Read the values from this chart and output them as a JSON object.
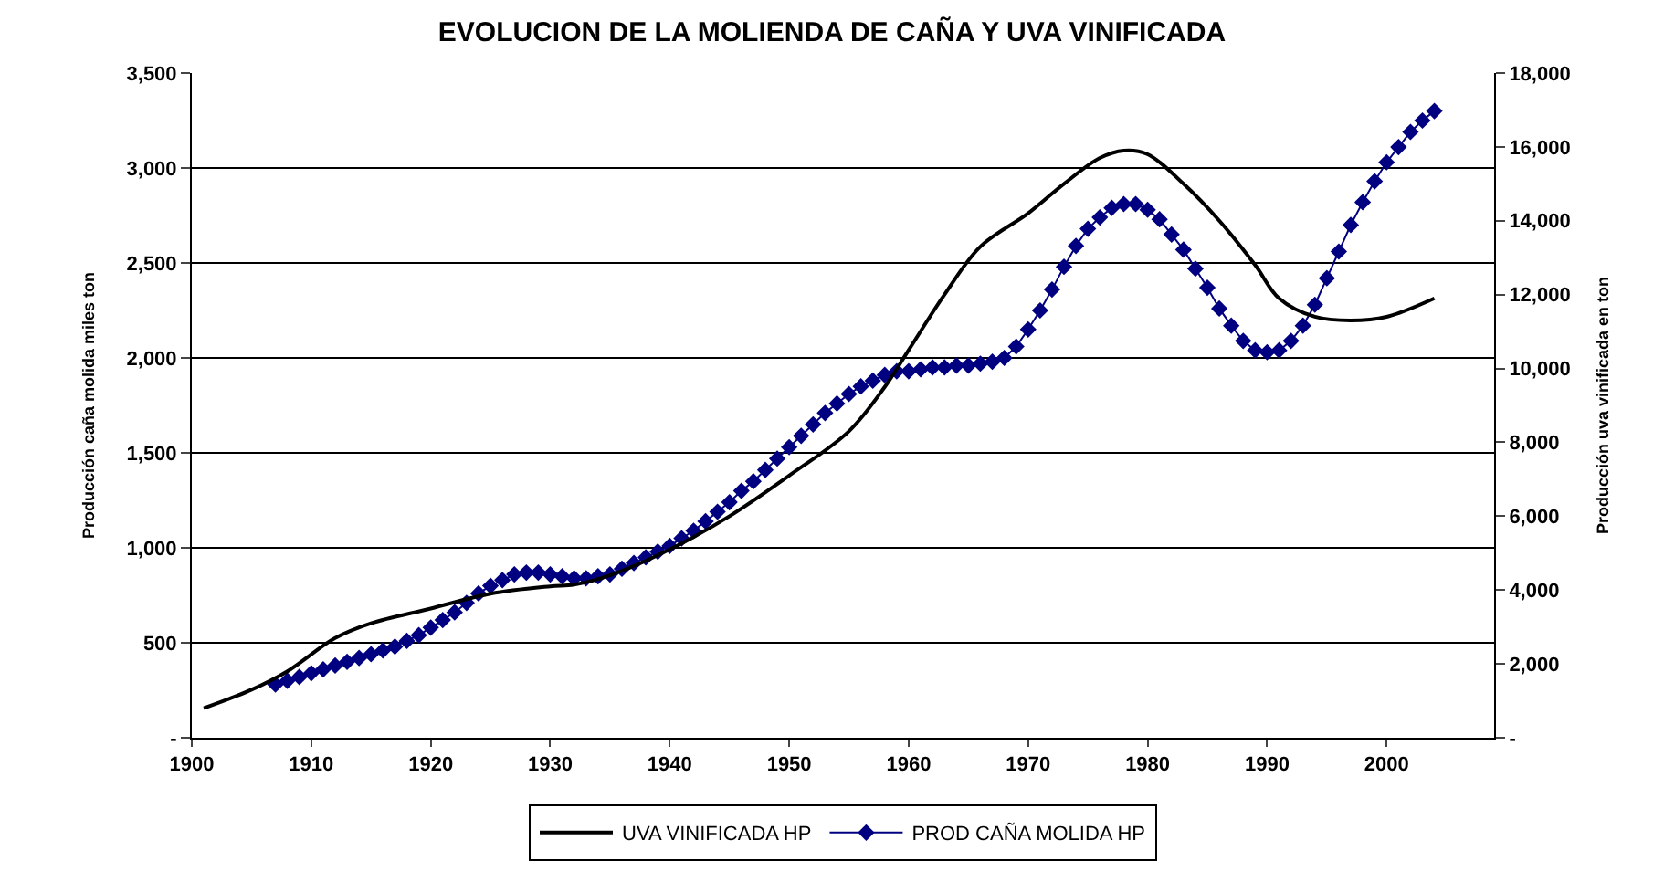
{
  "chart_data": {
    "type": "line",
    "title": "EVOLUCION DE LA MOLIENDA DE CAÑA Y UVA VINIFICADA",
    "ylabel": "Producción caña molida miles ton",
    "y2label": "Producción uva vinificada en ton",
    "xlim": [
      1900,
      2009
    ],
    "xticks": [
      1900,
      1910,
      1920,
      1930,
      1940,
      1950,
      1960,
      1970,
      1980,
      1990,
      2000
    ],
    "ylim": [
      0,
      3500
    ],
    "yticks": [
      {
        "value": 0,
        "label": "-"
      },
      {
        "value": 500,
        "label": "500"
      },
      {
        "value": 1000,
        "label": "1,000"
      },
      {
        "value": 1500,
        "label": "1,500"
      },
      {
        "value": 2000,
        "label": "2,000"
      },
      {
        "value": 2500,
        "label": "2,500"
      },
      {
        "value": 3000,
        "label": "3,000"
      },
      {
        "value": 3500,
        "label": "3,500"
      }
    ],
    "y2lim": [
      0,
      18000
    ],
    "y2ticks": [
      {
        "value": 0,
        "label": "-"
      },
      {
        "value": 2000,
        "label": "2,000"
      },
      {
        "value": 4000,
        "label": "4,000"
      },
      {
        "value": 6000,
        "label": "6,000"
      },
      {
        "value": 8000,
        "label": "8,000"
      },
      {
        "value": 10000,
        "label": "10,000"
      },
      {
        "value": 12000,
        "label": "12,000"
      },
      {
        "value": 14000,
        "label": "14,000"
      },
      {
        "value": 16000,
        "label": "16,000"
      },
      {
        "value": 18000,
        "label": "18,000"
      }
    ],
    "grid": "y",
    "legend": "bottom",
    "series": [
      {
        "name": "UVA VINIFICADA HP",
        "color": "#000000",
        "axis": "y2",
        "marker": "none",
        "x": [
          1901,
          1905,
          1908,
          1912,
          1915,
          1920,
          1925,
          1930,
          1932,
          1935,
          1940,
          1945,
          1950,
          1955,
          1958,
          1960,
          1963,
          1966,
          1970,
          1973,
          1976,
          1978,
          1980,
          1983,
          1986,
          1989,
          1991,
          1994,
          1997,
          2000,
          2004
        ],
        "values": [
          800,
          1300,
          1800,
          2700,
          3100,
          3500,
          3900,
          4100,
          4150,
          4400,
          5100,
          6000,
          7100,
          8300,
          9500,
          10500,
          12000,
          13300,
          14200,
          15000,
          15700,
          15900,
          15800,
          15000,
          14000,
          12800,
          11900,
          11400,
          11300,
          11400,
          11900
        ]
      },
      {
        "name": "PROD CAÑA MOLIDA HP",
        "color": "#000080",
        "marker": "diamond",
        "x": [
          1907,
          1908,
          1909,
          1910,
          1911,
          1912,
          1913,
          1914,
          1915,
          1916,
          1917,
          1918,
          1919,
          1920,
          1921,
          1922,
          1923,
          1924,
          1925,
          1926,
          1927,
          1928,
          1929,
          1930,
          1931,
          1932,
          1933,
          1934,
          1935,
          1936,
          1937,
          1938,
          1939,
          1940,
          1941,
          1942,
          1943,
          1944,
          1945,
          1946,
          1947,
          1948,
          1949,
          1950,
          1951,
          1952,
          1953,
          1954,
          1955,
          1956,
          1957,
          1958,
          1959,
          1960,
          1961,
          1962,
          1963,
          1964,
          1965,
          1966,
          1967,
          1968,
          1969,
          1970,
          1971,
          1972,
          1973,
          1974,
          1975,
          1976,
          1977,
          1978,
          1979,
          1980,
          1981,
          1982,
          1983,
          1984,
          1985,
          1986,
          1987,
          1988,
          1989,
          1990,
          1991,
          1992,
          1993,
          1994,
          1995,
          1996,
          1997,
          1998,
          1999,
          2000,
          2001,
          2002,
          2003,
          2004
        ],
        "values": [
          280,
          300,
          320,
          340,
          360,
          380,
          400,
          420,
          440,
          460,
          480,
          510,
          540,
          580,
          620,
          660,
          710,
          760,
          800,
          830,
          860,
          870,
          870,
          860,
          850,
          840,
          840,
          850,
          860,
          890,
          920,
          950,
          980,
          1010,
          1050,
          1090,
          1140,
          1190,
          1240,
          1300,
          1350,
          1410,
          1470,
          1530,
          1590,
          1650,
          1710,
          1760,
          1810,
          1850,
          1880,
          1910,
          1930,
          1930,
          1940,
          1950,
          1950,
          1960,
          1960,
          1970,
          1980,
          2000,
          2060,
          2150,
          2250,
          2360,
          2480,
          2590,
          2680,
          2740,
          2790,
          2810,
          2810,
          2780,
          2730,
          2650,
          2570,
          2470,
          2370,
          2260,
          2170,
          2090,
          2040,
          2030,
          2040,
          2090,
          2170,
          2280,
          2420,
          2560,
          2700,
          2820,
          2930,
          3030,
          3110,
          3190,
          3250,
          3300
        ]
      }
    ]
  }
}
